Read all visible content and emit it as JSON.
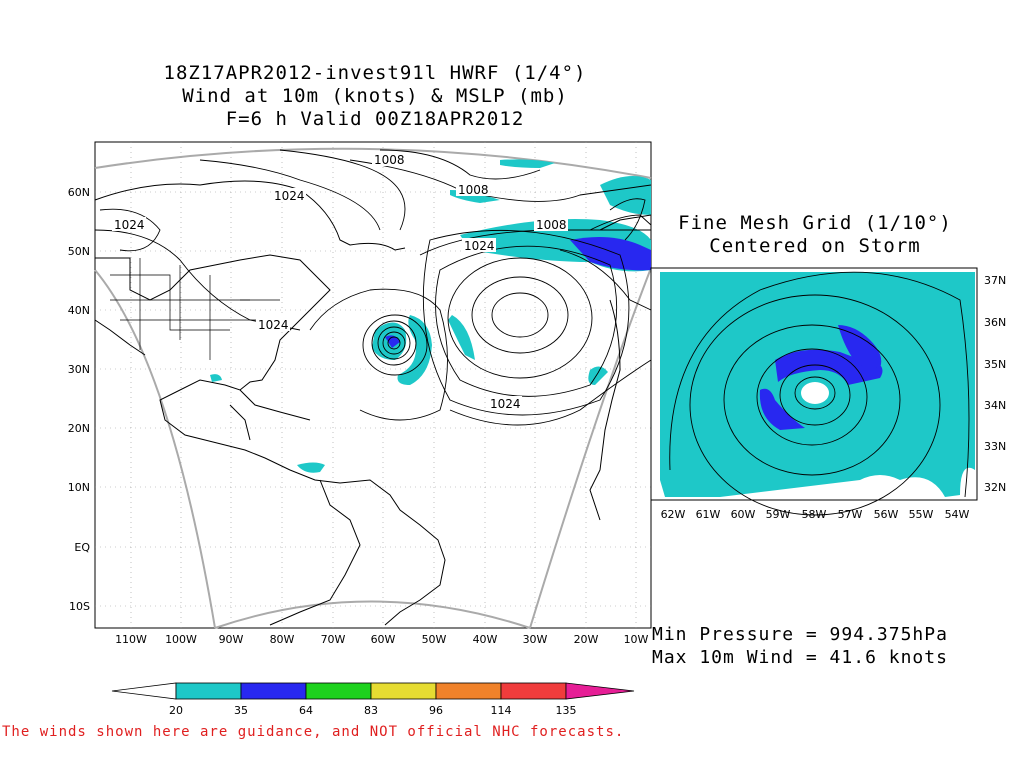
{
  "title": {
    "line1": "18Z17APR2012-invest91l HWRF (1/4°)",
    "line2": "Wind at 10m (knots) & MSLP (mb)",
    "line3": "F=6 h Valid 00Z18APR2012"
  },
  "inset": {
    "line1": "Fine Mesh Grid (1/10°)",
    "line2": "Centered on Storm",
    "lon_labels": [
      "62W",
      "61W",
      "60W",
      "59W",
      "58W",
      "57W",
      "56W",
      "55W",
      "54W"
    ],
    "lat_labels": [
      "37N",
      "36N",
      "35N",
      "34N",
      "33N",
      "32N"
    ]
  },
  "main_map": {
    "lon_labels": [
      "110W",
      "100W",
      "90W",
      "80W",
      "70W",
      "60W",
      "50W",
      "40W",
      "30W",
      "20W",
      "10W"
    ],
    "lat_labels": [
      "60N",
      "50N",
      "40N",
      "30N",
      "20N",
      "10N",
      "EQ",
      "10S"
    ],
    "isobar_labels": [
      {
        "id": "iso-1008-a",
        "text": "1008"
      },
      {
        "id": "iso-1008-b",
        "text": "1008"
      },
      {
        "id": "iso-1008-c",
        "text": "1008"
      },
      {
        "id": "iso-1024-a",
        "text": "1024"
      },
      {
        "id": "iso-1024-b",
        "text": "1024"
      },
      {
        "id": "iso-1024-c",
        "text": "1024"
      },
      {
        "id": "iso-1024-d",
        "text": "1024"
      },
      {
        "id": "iso-1024-e",
        "text": "1024"
      }
    ]
  },
  "stats": {
    "min_pressure": "Min Pressure = 994.375hPa",
    "max_wind": "Max 10m Wind = 41.6 knots"
  },
  "colorbar": {
    "ticks": [
      "20",
      "35",
      "64",
      "83",
      "96",
      "114",
      "135"
    ],
    "colors": [
      "#ffffff",
      "#1ec8c8",
      "#2828f0",
      "#1ed21e",
      "#e6dc32",
      "#f0822a",
      "#f03c3c",
      "#e61e96"
    ]
  },
  "disclaimer": "The winds shown here are guidance, and NOT official NHC forecasts."
}
